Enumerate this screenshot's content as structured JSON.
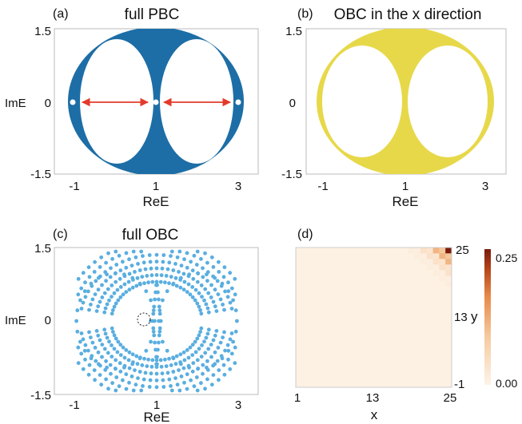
{
  "figure": {
    "panels": [
      {
        "label": "(a)",
        "title": "full PBC",
        "xlabel": "ReE",
        "ylabel": "ImE",
        "x_ticks": [
          "-1",
          "1",
          "3"
        ],
        "y_ticks": [
          "1.5",
          "0",
          "-1.5"
        ],
        "fill_color": "#1d6ea6",
        "arrow_color": "#e23b2c"
      },
      {
        "label": "(b)",
        "title": "OBC in the x direction",
        "xlabel": "ReE",
        "ylabel": "",
        "x_ticks": [
          "-1",
          "1",
          "3"
        ],
        "y_ticks": [
          "1.5",
          "0",
          "-1.5"
        ],
        "fill_color": "#e7d84a"
      },
      {
        "label": "(c)",
        "title": "full OBC",
        "xlabel": "ReE",
        "ylabel": "ImE",
        "x_ticks": [
          "-1",
          "1",
          "3"
        ],
        "y_ticks": [
          "1.5",
          "0",
          "-1.5"
        ],
        "point_color": "#5aaee0"
      },
      {
        "label": "(d)",
        "title": "",
        "xlabel": "x",
        "ylabel": "y",
        "x_ticks": [
          "1",
          "13",
          "25"
        ],
        "y_ticks": [
          "25",
          "13",
          "-1"
        ],
        "colorbar_ticks": [
          "0.25",
          "0.00"
        ],
        "colormap": [
          "#fdf3e8",
          "#f6cba0",
          "#e78a4a",
          "#b7451a",
          "#7a1b0c"
        ]
      }
    ]
  },
  "chart_data": [
    {
      "type": "scatter",
      "panel": "(a)",
      "title": "full PBC",
      "xlabel": "ReE",
      "ylabel": "ImE",
      "xlim": [
        -1.5,
        3.5
      ],
      "ylim": [
        -1.5,
        1.5
      ],
      "description_values": {
        "outer_region": "filled spectrum bounded by ellipse centered at (1,0), semi-axes ~2.1 (Re) and ~1.5 (Im)",
        "holes": [
          {
            "center": [
              0,
              0
            ],
            "rx": 0.8,
            "ry": 1.2
          },
          {
            "center": [
              2,
              0
            ],
            "rx": 0.8,
            "ry": 1.2
          }
        ],
        "isolated_points": [
          [
            -1,
            0
          ],
          [
            1,
            0
          ],
          [
            3,
            0
          ]
        ],
        "arrows": [
          [
            [
              -0.85,
              0
            ],
            [
              0.85,
              0
            ]
          ],
          [
            [
              1.15,
              0
            ],
            [
              2.85,
              0
            ]
          ]
        ]
      }
    },
    {
      "type": "scatter",
      "panel": "(b)",
      "title": "OBC in the x direction",
      "xlabel": "ReE",
      "xlim": [
        -1.5,
        3.5
      ],
      "ylim": [
        -1.5,
        1.5
      ],
      "description_values": {
        "outer_region": "filled spectrum bounded by ellipse centered at (1,0), semi-axes ~1.85 (Re) and ~1.5 (Im)",
        "holes": [
          {
            "center": [
              0,
              0
            ],
            "rx": 0.9,
            "ry": 1.15
          },
          {
            "center": [
              2,
              0
            ],
            "rx": 0.9,
            "ry": 1.15
          }
        ]
      }
    },
    {
      "type": "scatter",
      "panel": "(c)",
      "title": "full OBC",
      "xlabel": "ReE",
      "ylabel": "ImE",
      "xlim": [
        -1.5,
        3.5
      ],
      "ylim": [
        -1.5,
        1.5
      ],
      "description_values": {
        "circle_rings": [
          {
            "center": [
              0,
              0
            ],
            "r": 0.95
          },
          {
            "center": [
              2,
              0
            ],
            "r": 0.95
          }
        ],
        "highlighted_point": [
          0.85,
          0
        ]
      }
    },
    {
      "type": "heatmap",
      "panel": "(d)",
      "xlabel": "x",
      "ylabel": "y",
      "x_range": [
        1,
        25
      ],
      "y_range": [
        1,
        25
      ],
      "color_range": [
        0.0,
        0.25
      ],
      "peak": {
        "x": 25,
        "y": 25,
        "value": 0.25
      }
    }
  ]
}
